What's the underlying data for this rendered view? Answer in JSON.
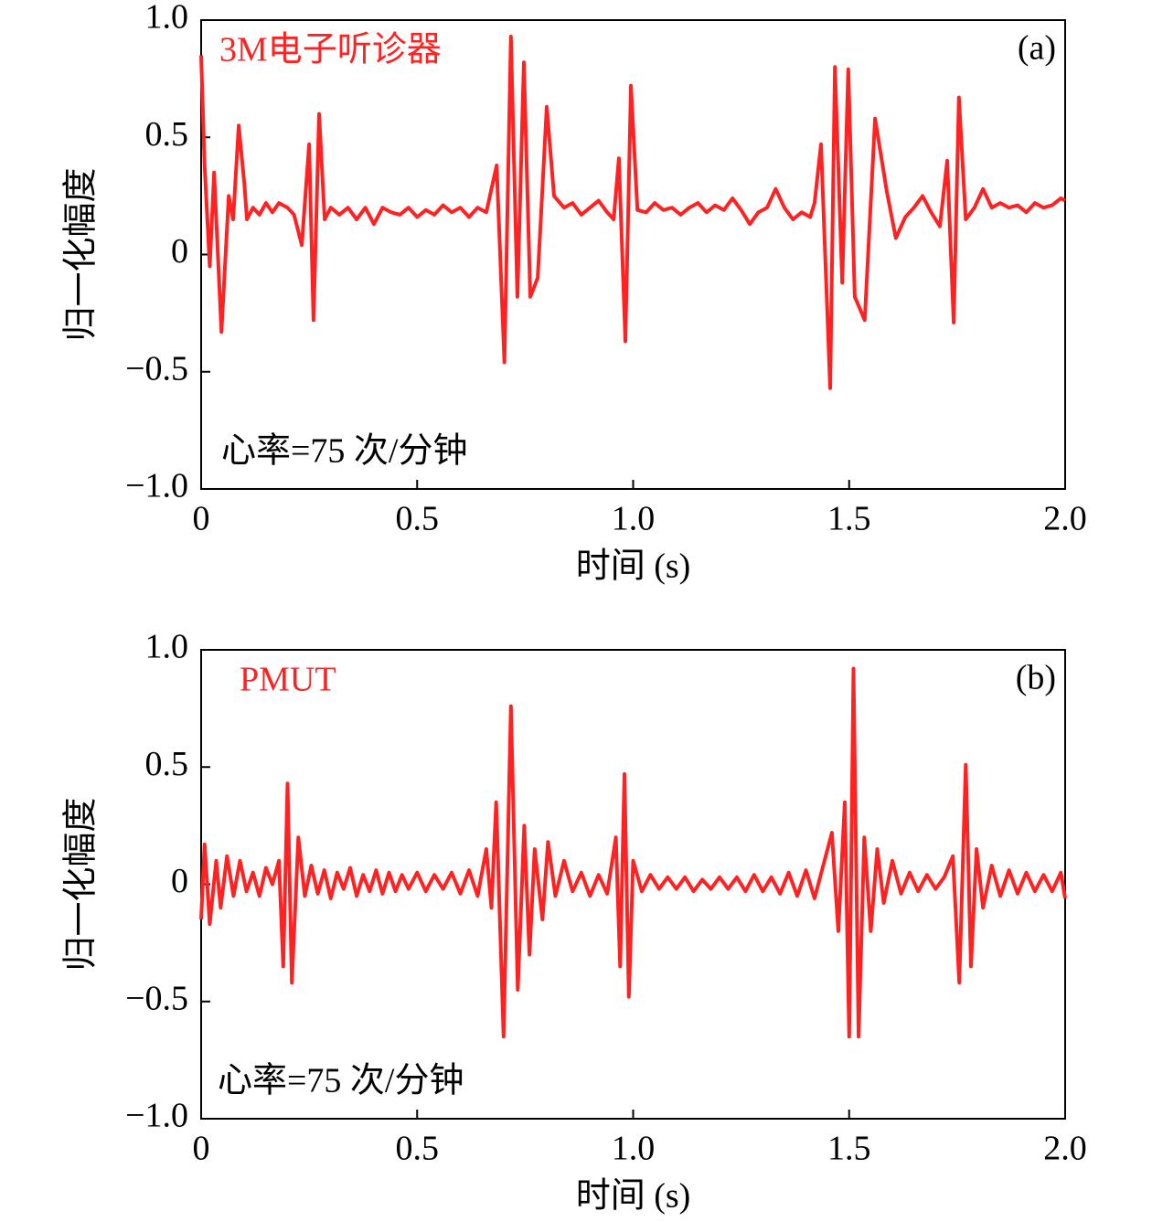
{
  "chart_data": [
    {
      "type": "line",
      "series": [
        {
          "name": "3M电子听诊器",
          "color": "#ff2222",
          "values": [
            0.85,
            0.38,
            -0.05,
            0.35,
            -0.33,
            0.25,
            0.15,
            0.55,
            0.3,
            0.15,
            0.2,
            0.17,
            0.22,
            0.18,
            0.22,
            0.2,
            0.17,
            0.04,
            0.47,
            -0.28,
            0.6,
            0.15,
            0.2,
            0.17,
            0.2,
            0.15,
            0.2,
            0.13,
            0.2,
            0.18,
            0.17,
            0.2,
            0.16,
            0.19,
            0.17,
            0.21,
            0.18,
            0.2,
            0.16,
            0.2,
            0.18,
            0.38,
            -0.46,
            0.93,
            -0.18,
            0.82,
            -0.18,
            -0.1,
            0.63,
            0.25,
            0.2,
            0.22,
            0.17,
            0.2,
            0.23,
            0.18,
            0.15,
            0.41,
            -0.37,
            0.72,
            0.19,
            0.18,
            0.22,
            0.19,
            0.2,
            0.17,
            0.2,
            0.22,
            0.18,
            0.21,
            0.19,
            0.24,
            0.19,
            0.13,
            0.18,
            0.2,
            0.28,
            0.2,
            0.15,
            0.18,
            0.16,
            0.22,
            0.47,
            -0.57,
            0.8,
            -0.12,
            0.79,
            -0.18,
            -0.28,
            0.58,
            0.27,
            0.07,
            0.16,
            0.2,
            0.25,
            0.18,
            0.12,
            0.4,
            -0.29,
            0.67,
            0.15,
            0.2,
            0.28,
            0.2,
            0.22,
            0.2,
            0.21,
            0.18,
            0.22,
            0.2,
            0.21,
            0.24,
            0.23
          ]
        }
      ],
      "x": [
        0,
        0.008,
        0.02,
        0.03,
        0.047,
        0.064,
        0.074,
        0.087,
        0.1,
        0.106,
        0.12,
        0.135,
        0.15,
        0.165,
        0.18,
        0.2,
        0.215,
        0.233,
        0.25,
        0.26,
        0.273,
        0.286,
        0.3,
        0.32,
        0.34,
        0.36,
        0.38,
        0.4,
        0.42,
        0.44,
        0.46,
        0.48,
        0.5,
        0.52,
        0.54,
        0.56,
        0.58,
        0.6,
        0.62,
        0.64,
        0.66,
        0.684,
        0.702,
        0.717,
        0.732,
        0.747,
        0.762,
        0.779,
        0.8,
        0.817,
        0.84,
        0.86,
        0.88,
        0.9,
        0.92,
        0.94,
        0.955,
        0.967,
        0.982,
        0.995,
        1.01,
        1.03,
        1.05,
        1.07,
        1.09,
        1.11,
        1.13,
        1.15,
        1.17,
        1.19,
        1.21,
        1.23,
        1.25,
        1.27,
        1.29,
        1.31,
        1.33,
        1.35,
        1.37,
        1.39,
        1.41,
        1.42,
        1.435,
        1.456,
        1.467,
        1.484,
        1.498,
        1.513,
        1.536,
        1.56,
        1.587,
        1.608,
        1.63,
        1.65,
        1.67,
        1.69,
        1.71,
        1.727,
        1.742,
        1.754,
        1.77,
        1.79,
        1.81,
        1.83,
        1.85,
        1.87,
        1.89,
        1.91,
        1.93,
        1.95,
        1.97,
        1.99,
        2.0
      ],
      "panel_label": "(a)",
      "annotation": "心率=75 次/分钟",
      "xlabel": "时间 (s)",
      "ylabel": "归一化幅度",
      "xlim": [
        0,
        2
      ],
      "ylim": [
        -1,
        1
      ],
      "xticks": [
        0,
        0.5,
        {
          "value": 1,
          "label": "1.0"
        },
        1.5,
        {
          "value": 2,
          "label": "2.0"
        }
      ],
      "yticks": [
        {
          "value": -1,
          "label": "−1.0"
        },
        {
          "value": -0.5,
          "label": "−0.5"
        },
        0,
        0.5,
        {
          "value": 1,
          "label": "1.0"
        }
      ]
    },
    {
      "type": "line",
      "series": [
        {
          "name": "PMUT",
          "color": "#ff2222",
          "values": [
            -0.15,
            0.17,
            -0.17,
            0.1,
            -0.1,
            0.12,
            -0.05,
            0.1,
            -0.03,
            0.05,
            -0.05,
            0.07,
            0.0,
            0.1,
            -0.35,
            0.43,
            -0.42,
            0.2,
            -0.05,
            0.08,
            -0.04,
            0.06,
            -0.06,
            0.05,
            -0.02,
            0.07,
            -0.05,
            0.04,
            -0.03,
            0.06,
            -0.04,
            0.05,
            -0.03,
            0.04,
            -0.02,
            0.05,
            -0.03,
            0.04,
            -0.02,
            0.05,
            -0.04,
            0.06,
            -0.05,
            0.15,
            -0.1,
            0.35,
            -0.65,
            0.76,
            -0.45,
            0.25,
            -0.3,
            0.15,
            -0.15,
            0.18,
            -0.05,
            0.1,
            -0.03,
            0.05,
            -0.05,
            0.04,
            -0.04,
            0.2,
            -0.35,
            0.47,
            -0.48,
            0.1,
            -0.03,
            0.04,
            -0.02,
            0.03,
            -0.02,
            0.03,
            -0.03,
            0.02,
            -0.02,
            0.03,
            -0.02,
            0.03,
            -0.03,
            0.04,
            -0.03,
            0.03,
            -0.04,
            0.05,
            -0.05,
            0.06,
            -0.06,
            0.08,
            0.22,
            -0.2,
            0.35,
            -0.65,
            0.92,
            -0.65,
            0.2,
            -0.2,
            0.15,
            -0.08,
            0.1,
            -0.04,
            0.05,
            -0.03,
            0.04,
            -0.02,
            0.03,
            0.12,
            -0.42,
            0.51,
            -0.35,
            0.15,
            -0.1,
            0.08,
            -0.05,
            0.06,
            -0.04,
            0.05,
            -0.03,
            0.04,
            -0.03,
            0.05,
            -0.06
          ]
        }
      ],
      "x": [
        0,
        0.008,
        0.02,
        0.035,
        0.045,
        0.06,
        0.075,
        0.09,
        0.105,
        0.12,
        0.135,
        0.15,
        0.165,
        0.18,
        0.19,
        0.2,
        0.21,
        0.225,
        0.24,
        0.255,
        0.27,
        0.285,
        0.3,
        0.315,
        0.33,
        0.345,
        0.36,
        0.375,
        0.39,
        0.405,
        0.42,
        0.435,
        0.45,
        0.465,
        0.48,
        0.5,
        0.52,
        0.54,
        0.56,
        0.58,
        0.6,
        0.62,
        0.64,
        0.66,
        0.672,
        0.683,
        0.7,
        0.717,
        0.733,
        0.748,
        0.76,
        0.772,
        0.79,
        0.803,
        0.82,
        0.84,
        0.86,
        0.88,
        0.9,
        0.92,
        0.94,
        0.96,
        0.97,
        0.98,
        0.99,
        1.0,
        1.02,
        1.04,
        1.06,
        1.08,
        1.1,
        1.12,
        1.14,
        1.16,
        1.18,
        1.2,
        1.22,
        1.24,
        1.26,
        1.28,
        1.3,
        1.32,
        1.34,
        1.36,
        1.38,
        1.4,
        1.42,
        1.44,
        1.46,
        1.475,
        1.49,
        1.5,
        1.51,
        1.522,
        1.535,
        1.55,
        1.565,
        1.58,
        1.6,
        1.62,
        1.64,
        1.66,
        1.68,
        1.7,
        1.72,
        1.74,
        1.755,
        1.77,
        1.782,
        1.795,
        1.81,
        1.83,
        1.85,
        1.87,
        1.89,
        1.91,
        1.93,
        1.95,
        1.97,
        1.99,
        2.0
      ],
      "panel_label": "(b)",
      "annotation": "心率=75 次/分钟",
      "xlabel": "时间 (s)",
      "ylabel": "归一化幅度",
      "xlim": [
        0,
        2
      ],
      "ylim": [
        -1,
        1
      ],
      "xticks": [
        0,
        0.5,
        {
          "value": 1,
          "label": "1.0"
        },
        1.5,
        {
          "value": 2,
          "label": "2.0"
        }
      ],
      "yticks": [
        {
          "value": -1,
          "label": "−1.0"
        },
        {
          "value": -0.5,
          "label": "−0.5"
        },
        0,
        0.5,
        {
          "value": 1,
          "label": "1.0"
        }
      ]
    }
  ]
}
